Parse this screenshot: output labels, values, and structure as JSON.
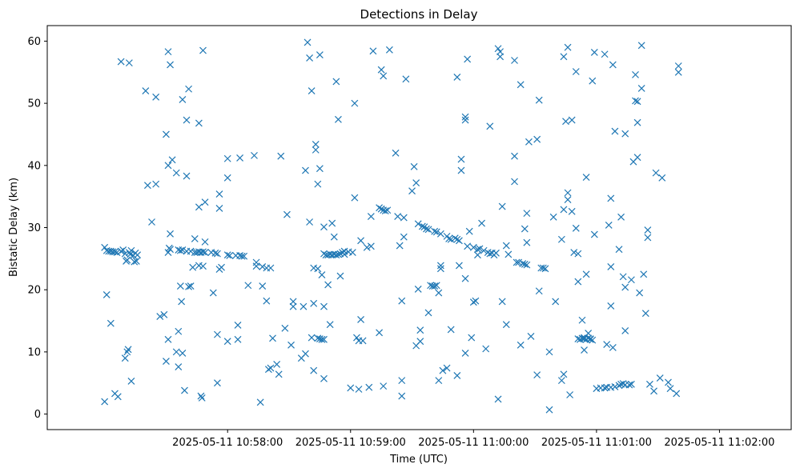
{
  "chart_data": {
    "type": "scatter",
    "title": "Detections in Delay",
    "xlabel": "Time (UTC)",
    "ylabel": "Bistatic Delay (km)",
    "marker": "x",
    "color": "#1f77b4",
    "xlim_seconds_from_10_57_00": [
      -28,
      335
    ],
    "ylim": [
      -2.5,
      62.5
    ],
    "x_ticks": [
      {
        "t": 60,
        "label": "2025-05-11 10:58:00"
      },
      {
        "t": 120,
        "label": "2025-05-11 10:59:00"
      },
      {
        "t": 180,
        "label": "2025-05-11 11:00:00"
      },
      {
        "t": 240,
        "label": "2025-05-11 11:01:00"
      },
      {
        "t": 300,
        "label": "2025-05-11 11:02:00"
      }
    ],
    "y_ticks": [
      {
        "v": 0,
        "label": "0"
      },
      {
        "v": 10,
        "label": "10"
      },
      {
        "v": 20,
        "label": "20"
      },
      {
        "v": 30,
        "label": "30"
      },
      {
        "v": 40,
        "label": "40"
      },
      {
        "v": 50,
        "label": "50"
      },
      {
        "v": 60,
        "label": "60"
      }
    ],
    "x_unit_note": "x values are seconds after 2025-05-11 10:57:00 UTC",
    "points": [
      [
        0,
        26.8
      ],
      [
        1,
        26.3
      ],
      [
        2,
        26.2
      ],
      [
        3,
        26.2
      ],
      [
        4,
        26.1
      ],
      [
        5,
        26.1
      ],
      [
        6,
        26.0
      ],
      [
        8,
        26.2
      ],
      [
        9,
        26.4
      ],
      [
        10,
        25.8
      ],
      [
        10.5,
        24.6
      ],
      [
        11,
        24.8
      ],
      [
        12,
        26.0
      ],
      [
        12.5,
        25.7
      ],
      [
        13,
        26.3
      ],
      [
        14,
        25.5
      ],
      [
        14.5,
        24.5
      ],
      [
        15,
        25.9
      ],
      [
        15.5,
        24.6
      ],
      [
        16,
        25.6
      ],
      [
        0,
        2.0
      ],
      [
        1,
        19.2
      ],
      [
        3,
        14.6
      ],
      [
        5,
        3.3
      ],
      [
        6.5,
        2.8
      ],
      [
        8,
        56.7
      ],
      [
        10,
        9.0
      ],
      [
        11,
        10.0
      ],
      [
        12,
        56.5
      ],
      [
        11.5,
        10.4
      ],
      [
        13,
        5.3
      ],
      [
        20,
        52.0
      ],
      [
        21,
        36.8
      ],
      [
        23,
        30.9
      ],
      [
        25,
        51.0
      ],
      [
        25,
        37.0
      ],
      [
        27,
        15.7
      ],
      [
        29,
        16.0
      ],
      [
        30,
        45.0
      ],
      [
        30,
        8.5
      ],
      [
        31,
        58.3
      ],
      [
        31,
        40.0
      ],
      [
        32,
        56.2
      ],
      [
        31,
        12.0
      ],
      [
        32,
        29.0
      ],
      [
        33,
        40.9
      ],
      [
        31,
        26.0
      ],
      [
        32,
        26.5
      ],
      [
        31.5,
        26.7
      ],
      [
        35,
        38.8
      ],
      [
        35,
        10.0
      ],
      [
        36,
        7.6
      ],
      [
        36,
        13.3
      ],
      [
        37,
        20.6
      ],
      [
        37.5,
        18.1
      ],
      [
        38,
        50.6
      ],
      [
        38,
        9.8
      ],
      [
        39,
        3.8
      ],
      [
        41,
        52.3
      ],
      [
        40,
        47.3
      ],
      [
        40,
        38.3
      ],
      [
        41,
        20.5
      ],
      [
        42,
        20.6
      ],
      [
        43,
        23.6
      ],
      [
        44,
        28.2
      ],
      [
        36,
        26.4
      ],
      [
        37,
        26.3
      ],
      [
        38,
        26.4
      ],
      [
        40,
        26.2
      ],
      [
        42,
        26.2
      ],
      [
        44,
        26.0
      ],
      [
        45,
        26.0
      ],
      [
        46,
        26.1
      ],
      [
        47,
        26.0
      ],
      [
        48,
        26.1
      ],
      [
        49,
        26.0
      ],
      [
        52,
        26.0
      ],
      [
        54,
        25.9
      ],
      [
        55,
        25.8
      ],
      [
        60,
        25.6
      ],
      [
        61,
        25.5
      ],
      [
        64,
        25.5
      ],
      [
        66,
        25.5
      ],
      [
        67,
        25.4
      ],
      [
        68,
        25.4
      ],
      [
        46,
        46.8
      ],
      [
        46,
        33.3
      ],
      [
        46,
        23.9
      ],
      [
        47,
        2.9
      ],
      [
        47.5,
        2.6
      ],
      [
        48,
        58.5
      ],
      [
        48,
        23.8
      ],
      [
        49,
        34.1
      ],
      [
        49,
        27.7
      ],
      [
        53,
        19.5
      ],
      [
        55,
        5.0
      ],
      [
        56,
        35.4
      ],
      [
        56,
        33.1
      ],
      [
        56,
        23.3
      ],
      [
        57,
        23.6
      ],
      [
        55,
        12.8
      ],
      [
        60,
        41.1
      ],
      [
        60,
        38.0
      ],
      [
        60,
        11.7
      ],
      [
        66,
        41.2
      ],
      [
        65,
        14.3
      ],
      [
        65,
        12.0
      ],
      [
        70,
        20.7
      ],
      [
        73,
        41.6
      ],
      [
        74,
        23.8
      ],
      [
        74,
        24.4
      ],
      [
        77,
        20.6
      ],
      [
        77,
        23.7
      ],
      [
        76,
        1.9
      ],
      [
        79,
        23.5
      ],
      [
        81,
        23.5
      ],
      [
        79,
        18.2
      ],
      [
        80,
        7.2
      ],
      [
        81,
        7.4
      ],
      [
        82,
        12.2
      ],
      [
        84,
        8.0
      ],
      [
        85,
        6.4
      ],
      [
        86,
        41.5
      ],
      [
        88,
        13.8
      ],
      [
        89,
        32.1
      ],
      [
        91,
        11.1
      ],
      [
        92,
        17.3
      ],
      [
        92,
        18.1
      ],
      [
        96,
        9.0
      ],
      [
        97,
        17.3
      ],
      [
        98,
        9.7
      ],
      [
        98,
        39.2
      ],
      [
        99,
        59.8
      ],
      [
        100,
        57.3
      ],
      [
        100,
        30.9
      ],
      [
        101,
        52.0
      ],
      [
        101,
        12.3
      ],
      [
        102,
        17.8
      ],
      [
        102,
        23.5
      ],
      [
        102,
        7.0
      ],
      [
        103,
        43.4
      ],
      [
        103,
        42.5
      ],
      [
        104,
        37.0
      ],
      [
        104,
        23.4
      ],
      [
        105,
        39.5
      ],
      [
        105,
        57.8
      ],
      [
        106,
        22.4
      ],
      [
        107,
        17.3
      ],
      [
        107,
        30.1
      ],
      [
        107,
        5.7
      ],
      [
        109,
        20.8
      ],
      [
        110,
        14.4
      ],
      [
        111,
        30.7
      ],
      [
        112,
        28.5
      ],
      [
        113,
        53.5
      ],
      [
        114,
        47.4
      ],
      [
        115,
        22.2
      ],
      [
        117,
        26.2
      ],
      [
        117,
        25.7
      ],
      [
        119,
        26.1
      ],
      [
        120,
        4.2
      ],
      [
        121,
        26.0
      ],
      [
        104,
        12.2
      ],
      [
        105,
        12.1
      ],
      [
        106,
        12.0
      ],
      [
        107,
        12.0
      ],
      [
        107,
        25.8
      ],
      [
        108,
        25.6
      ],
      [
        109,
        25.6
      ],
      [
        110,
        25.7
      ],
      [
        111,
        25.6
      ],
      [
        112,
        25.7
      ],
      [
        113,
        25.6
      ],
      [
        114,
        25.7
      ],
      [
        115,
        25.8
      ],
      [
        116,
        26.0
      ],
      [
        122,
        34.8
      ],
      [
        122,
        50.0
      ],
      [
        123,
        12.3
      ],
      [
        124,
        4.0
      ],
      [
        124,
        11.8
      ],
      [
        125,
        15.2
      ],
      [
        125,
        27.9
      ],
      [
        126,
        11.8
      ],
      [
        128,
        26.8
      ],
      [
        129,
        4.3
      ],
      [
        130,
        31.8
      ],
      [
        130,
        27.0
      ],
      [
        131,
        58.4
      ],
      [
        134,
        33.2
      ],
      [
        135,
        33.0
      ],
      [
        136,
        32.8
      ],
      [
        137,
        32.7
      ],
      [
        135,
        55.4
      ],
      [
        136,
        54.4
      ],
      [
        134,
        13.1
      ],
      [
        136,
        4.5
      ],
      [
        138,
        32.8
      ],
      [
        139,
        58.6
      ],
      [
        142,
        42.0
      ],
      [
        143,
        31.8
      ],
      [
        144,
        27.1
      ],
      [
        145,
        18.2
      ],
      [
        145,
        5.4
      ],
      [
        145,
        2.9
      ],
      [
        146,
        28.5
      ],
      [
        146,
        31.6
      ],
      [
        147,
        53.9
      ],
      [
        150,
        35.9
      ],
      [
        151,
        39.8
      ],
      [
        152,
        37.2
      ],
      [
        152,
        11.0
      ],
      [
        153,
        30.6
      ],
      [
        153,
        20.1
      ],
      [
        154,
        11.7
      ],
      [
        154,
        13.5
      ],
      [
        155,
        30.2
      ],
      [
        156,
        30.1
      ],
      [
        157,
        29.8
      ],
      [
        158,
        16.3
      ],
      [
        158,
        29.7
      ],
      [
        159,
        20.7
      ],
      [
        160,
        20.6
      ],
      [
        161,
        20.6
      ],
      [
        161,
        29.4
      ],
      [
        162,
        20.7
      ],
      [
        162,
        29.3
      ],
      [
        163,
        19.5
      ],
      [
        163,
        5.4
      ],
      [
        164,
        29.0
      ],
      [
        164,
        23.4
      ],
      [
        164,
        23.9
      ],
      [
        165,
        7.0
      ],
      [
        167,
        7.4
      ],
      [
        167,
        28.6
      ],
      [
        168,
        28.2
      ],
      [
        169,
        28.1
      ],
      [
        169,
        13.6
      ],
      [
        171,
        28.3
      ],
      [
        172,
        28.1
      ],
      [
        173,
        27.9
      ],
      [
        172,
        6.2
      ],
      [
        172,
        54.2
      ],
      [
        173,
        23.9
      ],
      [
        174,
        41.0
      ],
      [
        174,
        39.2
      ],
      [
        176,
        21.8
      ],
      [
        176,
        9.8
      ],
      [
        176,
        47.3
      ],
      [
        176,
        47.8
      ],
      [
        177,
        57.1
      ],
      [
        177,
        27.0
      ],
      [
        178,
        29.4
      ],
      [
        179,
        12.3
      ],
      [
        180,
        26.8
      ],
      [
        180,
        18.0
      ],
      [
        181,
        18.2
      ],
      [
        182,
        26.5
      ],
      [
        182,
        25.6
      ],
      [
        183,
        26.6
      ],
      [
        184,
        30.7
      ],
      [
        185,
        26.3
      ],
      [
        186,
        10.5
      ],
      [
        187,
        26.0
      ],
      [
        188,
        46.3
      ],
      [
        188,
        25.8
      ],
      [
        189,
        25.9
      ],
      [
        190,
        25.6
      ],
      [
        191,
        25.9
      ],
      [
        192,
        58.8
      ],
      [
        192,
        2.4
      ],
      [
        193,
        58.3
      ],
      [
        193,
        57.5
      ],
      [
        194,
        33.4
      ],
      [
        194,
        18.1
      ],
      [
        196,
        27.1
      ],
      [
        196,
        14.4
      ],
      [
        197,
        25.7
      ],
      [
        200,
        41.5
      ],
      [
        200,
        37.4
      ],
      [
        200,
        56.9
      ],
      [
        201,
        24.4
      ],
      [
        202,
        24.4
      ],
      [
        203,
        53.0
      ],
      [
        203,
        11.1
      ],
      [
        204,
        24.2
      ],
      [
        205,
        24.1
      ],
      [
        205,
        29.8
      ],
      [
        206,
        24.0
      ],
      [
        206,
        27.6
      ],
      [
        206,
        32.3
      ],
      [
        207,
        43.8
      ],
      [
        208,
        12.5
      ],
      [
        212,
        50.5
      ],
      [
        211,
        44.2
      ],
      [
        211,
        6.3
      ],
      [
        212,
        19.8
      ],
      [
        213,
        23.5
      ],
      [
        214,
        23.5
      ],
      [
        215,
        23.4
      ],
      [
        217,
        10.0
      ],
      [
        217,
        0.7
      ],
      [
        219,
        31.7
      ],
      [
        220,
        18.1
      ],
      [
        223,
        28.1
      ],
      [
        223,
        5.4
      ],
      [
        224,
        6.4
      ],
      [
        224,
        32.9
      ],
      [
        224,
        57.5
      ],
      [
        225,
        47.1
      ],
      [
        226,
        35.6
      ],
      [
        226,
        34.5
      ],
      [
        226,
        59.0
      ],
      [
        227,
        3.1
      ],
      [
        228,
        47.3
      ],
      [
        228,
        32.6
      ],
      [
        229,
        26.0
      ],
      [
        230,
        55.1
      ],
      [
        230,
        29.9
      ],
      [
        231,
        25.8
      ],
      [
        231,
        21.3
      ],
      [
        233,
        15.1
      ],
      [
        234,
        10.3
      ],
      [
        234,
        12.3
      ],
      [
        235,
        22.5
      ],
      [
        235,
        38.1
      ],
      [
        236,
        13.0
      ],
      [
        237,
        12.0
      ],
      [
        238,
        11.9
      ],
      [
        238,
        53.6
      ],
      [
        239,
        58.2
      ],
      [
        239,
        28.9
      ],
      [
        244,
        57.9
      ],
      [
        245,
        11.2
      ],
      [
        246,
        30.4
      ],
      [
        247,
        34.7
      ],
      [
        247,
        23.7
      ],
      [
        247,
        17.4
      ],
      [
        248,
        10.7
      ],
      [
        248,
        56.2
      ],
      [
        249,
        45.5
      ],
      [
        251,
        26.5
      ],
      [
        252,
        31.7
      ],
      [
        253,
        22.1
      ],
      [
        254,
        20.4
      ],
      [
        254,
        45.1
      ],
      [
        254,
        13.4
      ],
      [
        257,
        21.6
      ],
      [
        258,
        40.6
      ],
      [
        259,
        54.6
      ],
      [
        259,
        50.4
      ],
      [
        260,
        50.3
      ],
      [
        260,
        41.3
      ],
      [
        260,
        46.9
      ],
      [
        261,
        19.5
      ],
      [
        262,
        52.4
      ],
      [
        262,
        59.3
      ],
      [
        263,
        22.5
      ],
      [
        264,
        16.2
      ],
      [
        265,
        29.6
      ],
      [
        265,
        28.4
      ],
      [
        266,
        4.8
      ],
      [
        268,
        3.7
      ],
      [
        269,
        38.8
      ],
      [
        271,
        5.8
      ],
      [
        272,
        38.0
      ],
      [
        275,
        5.1
      ],
      [
        276,
        4.1
      ],
      [
        280,
        56.0
      ],
      [
        280,
        55.0
      ],
      [
        279,
        3.3
      ],
      [
        231,
        12.1
      ],
      [
        232,
        12.0
      ],
      [
        233,
        12.2
      ],
      [
        234,
        12.1
      ],
      [
        235,
        12.0
      ],
      [
        236,
        12.2
      ],
      [
        237,
        12.1
      ],
      [
        240,
        4.1
      ],
      [
        242,
        4.2
      ],
      [
        244,
        4.2
      ],
      [
        245,
        4.3
      ],
      [
        247,
        4.3
      ],
      [
        249,
        4.4
      ],
      [
        251,
        4.6
      ],
      [
        252,
        4.8
      ],
      [
        253,
        4.9
      ],
      [
        254,
        4.7
      ],
      [
        256,
        4.7
      ],
      [
        257,
        4.8
      ]
    ]
  }
}
